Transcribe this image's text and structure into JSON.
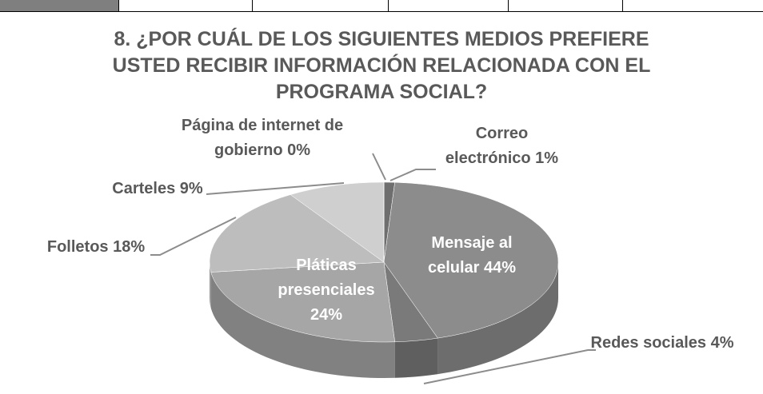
{
  "chart_data": {
    "type": "pie",
    "title": "8. ¿POR CUÁL DE LOS SIGUIENTES MEDIOS PREFIERE USTED RECIBIR INFORMACIÓN RELACIONADA CON EL PROGRAMA SOCIAL?",
    "categories": [
      "Correo electrónico",
      "Mensaje al celular",
      "Redes sociales",
      "Pláticas presenciales",
      "Folletos",
      "Carteles",
      "Página de internet de gobierno"
    ],
    "values": [
      1,
      44,
      4,
      24,
      18,
      9,
      0
    ],
    "value_labels": [
      "1%",
      "44%",
      "4%",
      "24%",
      "18%",
      "9%",
      "0%"
    ],
    "colors": [
      "#6e6e6e",
      "#8c8c8c",
      "#7a7a7a",
      "#a6a6a6",
      "#bdbdbd",
      "#cfcfcf",
      "#e0e0e0"
    ]
  }
}
